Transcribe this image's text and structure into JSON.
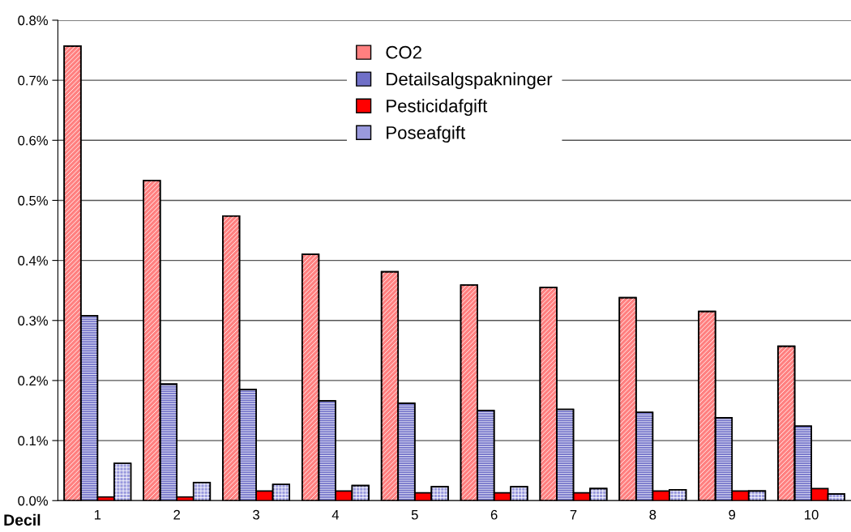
{
  "chart_data": {
    "type": "bar",
    "xlabel": "Decil",
    "categories": [
      "1",
      "2",
      "3",
      "4",
      "5",
      "6",
      "7",
      "8",
      "9",
      "10"
    ],
    "series": [
      {
        "name": "CO2",
        "color": "#ff8080",
        "values": [
          0.757,
          0.533,
          0.474,
          0.41,
          0.381,
          0.359,
          0.355,
          0.338,
          0.315,
          0.257
        ]
      },
      {
        "name": "Detailsalgspakninger",
        "color": "#7070c8",
        "values": [
          0.308,
          0.194,
          0.185,
          0.166,
          0.162,
          0.15,
          0.152,
          0.147,
          0.138,
          0.124
        ]
      },
      {
        "name": "Pesticidafgift",
        "color": "#ff0000",
        "values": [
          0.006,
          0.006,
          0.016,
          0.016,
          0.013,
          0.013,
          0.013,
          0.016,
          0.016,
          0.02
        ]
      },
      {
        "name": "Poseafgift",
        "color": "#9999dd",
        "values": [
          0.062,
          0.03,
          0.027,
          0.025,
          0.023,
          0.023,
          0.02,
          0.018,
          0.016,
          0.011
        ]
      }
    ],
    "ylim": [
      0,
      0.8
    ],
    "yticks": [
      {
        "value": 0,
        "label": "0.0%"
      },
      {
        "value": 0.1,
        "label": "0.1%"
      },
      {
        "value": 0.2,
        "label": "0.2%"
      },
      {
        "value": 0.3,
        "label": "0.3%"
      },
      {
        "value": 0.4,
        "label": "0.4%"
      },
      {
        "value": 0.5,
        "label": "0.5%"
      },
      {
        "value": 0.6,
        "label": "0.6%"
      },
      {
        "value": 0.7,
        "label": "0.7%"
      },
      {
        "value": 0.8,
        "label": "0.8%"
      }
    ],
    "grid": "y",
    "legend": "top"
  }
}
